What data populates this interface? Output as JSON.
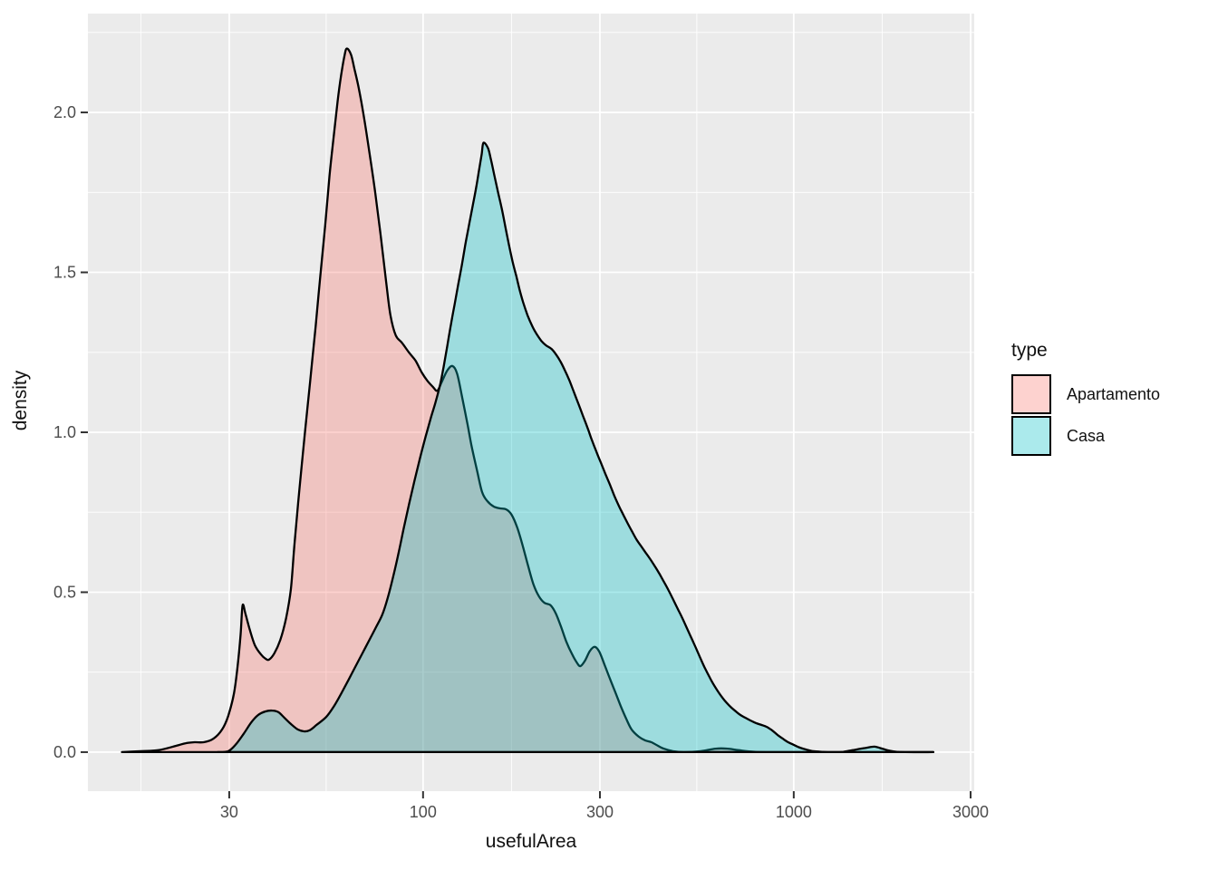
{
  "chart_data": {
    "type": "area",
    "subtype": "overlapping-density-plot",
    "title": "",
    "xlabel": "usefulArea",
    "ylabel": "density",
    "x_scale": "log10",
    "x_domain": [
      12.47,
      3068
    ],
    "y_domain": [
      -0.122,
      2.309
    ],
    "x_breaks": [
      30,
      100,
      300,
      1000,
      3000
    ],
    "x_break_labels": [
      "30",
      "100",
      "300",
      "1000",
      "3000"
    ],
    "x_minor_breaks": [
      17.32,
      54.77,
      173.2,
      547.7,
      1732
    ],
    "y_breaks": [
      0,
      0.5,
      1,
      1.5,
      2
    ],
    "y_break_labels": [
      "0.0",
      "0.5",
      "1.0",
      "1.5",
      "2.0"
    ],
    "y_minor_breaks": [
      0.25,
      0.75,
      1.25,
      1.75,
      2.25
    ],
    "grid": "on",
    "legend_position": "right",
    "legend_title": "type",
    "panel_bg": "#EBEBEB",
    "grid_color": "#FFFFFF",
    "stroke_color": "#000000",
    "tick_label_color": "#4D4D4D",
    "tick_mark_color": "#333333",
    "fill_opacity": 0.33,
    "series": [
      {
        "name": "Apartamento",
        "color": "#F8766D",
        "points": [
          [
            15.4,
            0
          ],
          [
            17.3,
            0.003
          ],
          [
            19.3,
            0.006
          ],
          [
            21.6,
            0.02
          ],
          [
            22.9,
            0.028
          ],
          [
            24.2,
            0.031
          ],
          [
            25.6,
            0.031
          ],
          [
            27.2,
            0.042
          ],
          [
            28.7,
            0.071
          ],
          [
            29.8,
            0.113
          ],
          [
            30.9,
            0.184
          ],
          [
            31.6,
            0.269
          ],
          [
            32.2,
            0.368
          ],
          [
            32.6,
            0.459
          ],
          [
            33.2,
            0.431
          ],
          [
            34.1,
            0.382
          ],
          [
            35.2,
            0.334
          ],
          [
            36.5,
            0.306
          ],
          [
            37.6,
            0.292
          ],
          [
            38.4,
            0.289
          ],
          [
            39.7,
            0.309
          ],
          [
            41.2,
            0.351
          ],
          [
            42.7,
            0.419
          ],
          [
            44,
            0.51
          ],
          [
            45,
            0.652
          ],
          [
            46.4,
            0.822
          ],
          [
            48,
            0.997
          ],
          [
            49.6,
            1.161
          ],
          [
            51.3,
            1.331
          ],
          [
            52.8,
            1.487
          ],
          [
            54.4,
            1.643
          ],
          [
            55.9,
            1.799
          ],
          [
            57.5,
            1.932
          ],
          [
            58.8,
            2.034
          ],
          [
            60.1,
            2.116
          ],
          [
            61.4,
            2.178
          ],
          [
            62.3,
            2.2
          ],
          [
            63.9,
            2.181
          ],
          [
            65.3,
            2.136
          ],
          [
            67.2,
            2.071
          ],
          [
            69.5,
            1.975
          ],
          [
            71.9,
            1.864
          ],
          [
            74.3,
            1.748
          ],
          [
            76.9,
            1.612
          ],
          [
            79.5,
            1.47
          ],
          [
            81.7,
            1.365
          ],
          [
            84.4,
            1.303
          ],
          [
            87.7,
            1.28
          ],
          [
            91.7,
            1.249
          ],
          [
            95.4,
            1.224
          ],
          [
            99.2,
            1.187
          ],
          [
            102.7,
            1.161
          ],
          [
            106.3,
            1.142
          ],
          [
            109.2,
            1.13
          ],
          [
            112.2,
            1.156
          ],
          [
            116.2,
            1.193
          ],
          [
            120,
            1.207
          ],
          [
            123.5,
            1.184
          ],
          [
            127.3,
            1.113
          ],
          [
            131.8,
            1.025
          ],
          [
            135.3,
            0.955
          ],
          [
            140,
            0.878
          ],
          [
            144.3,
            0.813
          ],
          [
            149,
            0.785
          ],
          [
            155,
            0.768
          ],
          [
            161.3,
            0.762
          ],
          [
            167.6,
            0.759
          ],
          [
            173.4,
            0.742
          ],
          [
            179.4,
            0.703
          ],
          [
            185.6,
            0.646
          ],
          [
            192,
            0.583
          ],
          [
            198.6,
            0.524
          ],
          [
            205.4,
            0.487
          ],
          [
            212.4,
            0.467
          ],
          [
            220.9,
            0.459
          ],
          [
            228.2,
            0.433
          ],
          [
            235.8,
            0.391
          ],
          [
            243.3,
            0.346
          ],
          [
            252.4,
            0.306
          ],
          [
            259.9,
            0.28
          ],
          [
            265.8,
            0.269
          ],
          [
            273.4,
            0.286
          ],
          [
            282.1,
            0.317
          ],
          [
            290.8,
            0.329
          ],
          [
            298.9,
            0.314
          ],
          [
            309,
            0.272
          ],
          [
            319.3,
            0.229
          ],
          [
            330.2,
            0.187
          ],
          [
            341.4,
            0.144
          ],
          [
            353,
            0.105
          ],
          [
            365.2,
            0.071
          ],
          [
            382.2,
            0.048
          ],
          [
            397.2,
            0.037
          ],
          [
            413,
            0.031
          ],
          [
            430,
            0.02
          ],
          [
            446,
            0.011
          ],
          [
            472,
            0.003
          ],
          [
            506,
            0
          ],
          [
            561,
            0.003
          ],
          [
            616,
            0.011
          ],
          [
            663,
            0.011
          ],
          [
            711,
            0.006
          ],
          [
            788,
            0.001
          ],
          [
            938,
            0
          ],
          [
            1400,
            0
          ],
          [
            2380,
            0
          ]
        ]
      },
      {
        "name": "Casa",
        "color": "#00BFC4",
        "points": [
          [
            27.9,
            0
          ],
          [
            29.8,
            0.003
          ],
          [
            31.2,
            0.023
          ],
          [
            32.8,
            0.057
          ],
          [
            34.4,
            0.093
          ],
          [
            35.9,
            0.116
          ],
          [
            37.5,
            0.127
          ],
          [
            39.2,
            0.13
          ],
          [
            40.7,
            0.125
          ],
          [
            42.2,
            0.108
          ],
          [
            44,
            0.088
          ],
          [
            45.9,
            0.071
          ],
          [
            47.7,
            0.065
          ],
          [
            49.4,
            0.068
          ],
          [
            51.6,
            0.085
          ],
          [
            54.8,
            0.11
          ],
          [
            57.4,
            0.142
          ],
          [
            60,
            0.181
          ],
          [
            62.8,
            0.224
          ],
          [
            65.6,
            0.266
          ],
          [
            68.6,
            0.309
          ],
          [
            71.9,
            0.354
          ],
          [
            74.7,
            0.391
          ],
          [
            77.7,
            0.431
          ],
          [
            80.3,
            0.482
          ],
          [
            83,
            0.547
          ],
          [
            85.9,
            0.623
          ],
          [
            88.7,
            0.7
          ],
          [
            91.7,
            0.776
          ],
          [
            94.9,
            0.85
          ],
          [
            98.2,
            0.921
          ],
          [
            101.6,
            0.986
          ],
          [
            105.1,
            1.048
          ],
          [
            108,
            1.093
          ],
          [
            111.1,
            1.147
          ],
          [
            113.6,
            1.204
          ],
          [
            116.2,
            1.269
          ],
          [
            118.9,
            1.337
          ],
          [
            121.6,
            1.399
          ],
          [
            124.4,
            1.462
          ],
          [
            127.3,
            1.524
          ],
          [
            130,
            1.586
          ],
          [
            133.1,
            1.649
          ],
          [
            136.1,
            1.708
          ],
          [
            139.1,
            1.765
          ],
          [
            141.5,
            1.818
          ],
          [
            143.9,
            1.869
          ],
          [
            145.5,
            1.905
          ],
          [
            149.6,
            1.889
          ],
          [
            152.1,
            1.858
          ],
          [
            155.5,
            1.807
          ],
          [
            159.3,
            1.751
          ],
          [
            163,
            1.7
          ],
          [
            166.7,
            1.643
          ],
          [
            170.5,
            1.586
          ],
          [
            174.3,
            1.535
          ],
          [
            178.3,
            1.49
          ],
          [
            182.2,
            1.445
          ],
          [
            186.4,
            1.405
          ],
          [
            191.5,
            1.365
          ],
          [
            197.2,
            1.331
          ],
          [
            202.8,
            1.306
          ],
          [
            208.5,
            1.286
          ],
          [
            214.5,
            1.272
          ],
          [
            221.9,
            1.261
          ],
          [
            228.2,
            1.244
          ],
          [
            234.9,
            1.221
          ],
          [
            241.5,
            1.193
          ],
          [
            248.4,
            1.161
          ],
          [
            255.4,
            1.125
          ],
          [
            262.7,
            1.088
          ],
          [
            270.1,
            1.051
          ],
          [
            277.8,
            1.014
          ],
          [
            285.5,
            0.975
          ],
          [
            293.8,
            0.938
          ],
          [
            302,
            0.904
          ],
          [
            310.4,
            0.87
          ],
          [
            319.3,
            0.836
          ],
          [
            328,
            0.802
          ],
          [
            337.4,
            0.77
          ],
          [
            347,
            0.742
          ],
          [
            356.9,
            0.714
          ],
          [
            367,
            0.688
          ],
          [
            377.3,
            0.663
          ],
          [
            388,
            0.643
          ],
          [
            399,
            0.623
          ],
          [
            410.3,
            0.603
          ],
          [
            422,
            0.581
          ],
          [
            434,
            0.558
          ],
          [
            446.2,
            0.533
          ],
          [
            459,
            0.507
          ],
          [
            472,
            0.479
          ],
          [
            485.4,
            0.45
          ],
          [
            499.2,
            0.422
          ],
          [
            513.4,
            0.391
          ],
          [
            528,
            0.36
          ],
          [
            543,
            0.329
          ],
          [
            558.3,
            0.297
          ],
          [
            574.2,
            0.266
          ],
          [
            590.5,
            0.238
          ],
          [
            607.3,
            0.212
          ],
          [
            624.5,
            0.19
          ],
          [
            642.2,
            0.17
          ],
          [
            660.4,
            0.153
          ],
          [
            679.2,
            0.139
          ],
          [
            698.4,
            0.127
          ],
          [
            718.3,
            0.116
          ],
          [
            738.5,
            0.108
          ],
          [
            764,
            0.099
          ],
          [
            790,
            0.091
          ],
          [
            817.5,
            0.085
          ],
          [
            845.7,
            0.079
          ],
          [
            874.4,
            0.068
          ],
          [
            904,
            0.054
          ],
          [
            934.5,
            0.042
          ],
          [
            966,
            0.031
          ],
          [
            998.6,
            0.023
          ],
          [
            1039,
            0.014
          ],
          [
            1081,
            0.008
          ],
          [
            1130,
            0.003
          ],
          [
            1200,
            0.001
          ],
          [
            1280,
            0
          ],
          [
            1360,
            0.001
          ],
          [
            1440,
            0.006
          ],
          [
            1560,
            0.013
          ],
          [
            1650,
            0.017
          ],
          [
            1740,
            0.01
          ],
          [
            1820,
            0.004
          ],
          [
            1900,
            0.001
          ],
          [
            2000,
            0
          ],
          [
            2380,
            0
          ]
        ]
      }
    ]
  }
}
